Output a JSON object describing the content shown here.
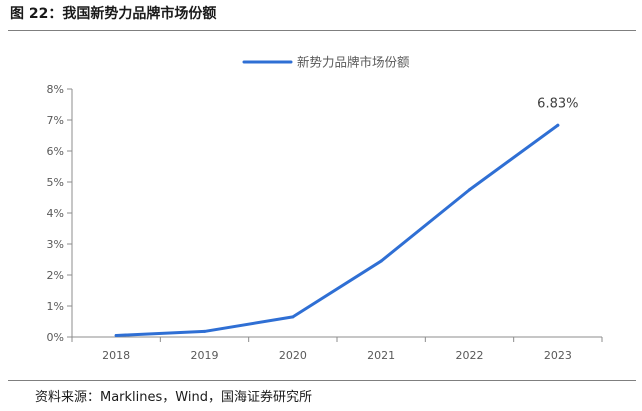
{
  "figure": {
    "title": "图 22：我国新势力品牌市场份额",
    "source": "资料来源：Marklines，Wind，国海证券研究所"
  },
  "chart_data": {
    "type": "line",
    "title": "",
    "xlabel": "",
    "ylabel": "",
    "categories": [
      "2018",
      "2019",
      "2020",
      "2021",
      "2022",
      "2023"
    ],
    "series": [
      {
        "name": "新势力品牌市场份额",
        "color": "#2f6fd4",
        "values": [
          0.05,
          0.18,
          0.65,
          2.45,
          4.75,
          6.83
        ]
      }
    ],
    "ylim": [
      0,
      8
    ],
    "yticks": [
      0,
      1,
      2,
      3,
      4,
      5,
      6,
      7,
      8
    ],
    "ytick_labels": [
      "0%",
      "1%",
      "2%",
      "3%",
      "4%",
      "5%",
      "6%",
      "7%",
      "8%"
    ],
    "y_unit": "%",
    "grid": false,
    "legend_position": "top-center",
    "annotations": [
      {
        "category": "2023",
        "text": "6.83%"
      }
    ]
  }
}
